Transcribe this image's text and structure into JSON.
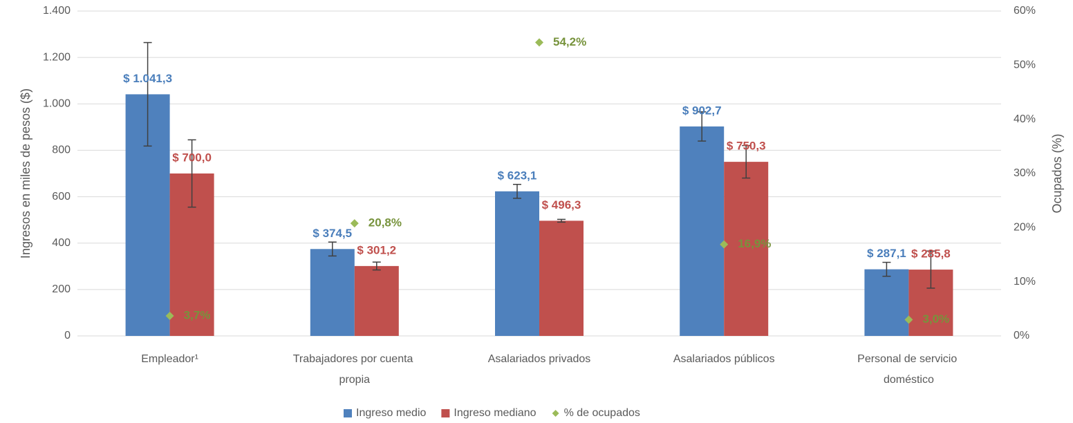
{
  "chart_data": {
    "type": "bar",
    "categories": [
      "Empleador¹",
      "Trabajadores por cuenta propia",
      "Asalariados privados",
      "Asalariados públicos",
      "Personal de servicio doméstico"
    ],
    "series": [
      {
        "name": "Ingreso medio",
        "color": "#4f81bd",
        "label_color": "#4a7ebb",
        "values": [
          1041.3,
          374.5,
          623.1,
          902.7,
          287.1
        ],
        "errors": [
          223,
          30,
          30,
          63,
          30
        ],
        "value_labels": [
          "$ 1.041,3",
          "$ 374,5",
          "$ 623,1",
          "$ 902,7",
          "$ 287,1"
        ]
      },
      {
        "name": "Ingreso mediano",
        "color": "#c0504d",
        "label_color": "#c0504d",
        "values": [
          700,
          301.2,
          496.3,
          750.3,
          285.8
        ],
        "errors": [
          145,
          17,
          6,
          70,
          80
        ],
        "value_labels": [
          "$ 700,0",
          "$ 301,2",
          "$ 496,3",
          "$ 750,3",
          "$ 285,8"
        ]
      },
      {
        "name": "% de ocupados",
        "color": "#9bbb59",
        "label_color": "#77933c",
        "axis": "y2",
        "marker": "diamond",
        "values": [
          3.7,
          20.8,
          54.2,
          16.9,
          3.0
        ],
        "value_labels": [
          "3,7%",
          "20,8%",
          "54,2%",
          "16,9%",
          "3,0%"
        ]
      }
    ],
    "ylabel": "Ingresos en miles de pesos ($)",
    "y2label": "Ocupados (%)",
    "ylim": [
      0,
      1400
    ],
    "yticks": [
      0,
      200,
      400,
      600,
      800,
      {
        "value": 1000,
        "label": "1.000"
      },
      {
        "value": 1200,
        "label": "1.200"
      },
      {
        "value": 1400,
        "label": "1.400"
      }
    ],
    "y2lim": [
      0,
      60
    ],
    "y2ticks": [
      {
        "value": 0,
        "label": "0%"
      },
      {
        "value": 10,
        "label": "10%"
      },
      {
        "value": 20,
        "label": "20%"
      },
      {
        "value": 30,
        "label": "30%"
      },
      {
        "value": 40,
        "label": "40%"
      },
      {
        "value": 50,
        "label": "50%"
      },
      {
        "value": 60,
        "label": "60%"
      }
    ],
    "grid": true,
    "legend": "bottom"
  }
}
